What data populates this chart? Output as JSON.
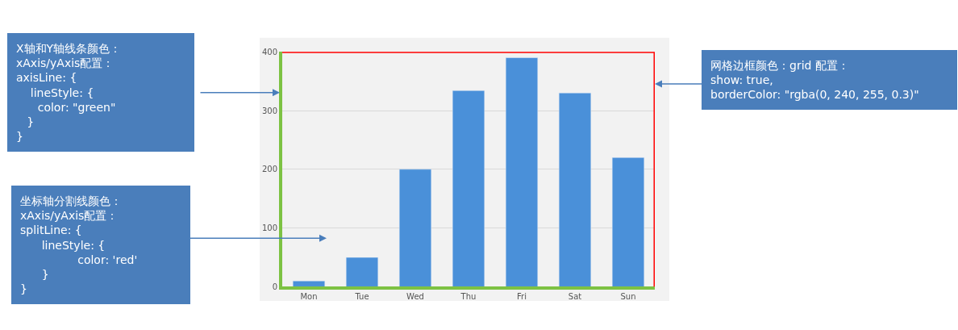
{
  "chart_data": {
    "type": "bar",
    "categories": [
      "Mon",
      "Tue",
      "Wed",
      "Thu",
      "Fri",
      "Sat",
      "Sun"
    ],
    "values": [
      10,
      50,
      200,
      334,
      390,
      330,
      220
    ],
    "color": "#4a90d9",
    "ylim": [
      0,
      400
    ],
    "yticks": [
      0,
      100,
      200,
      300,
      400
    ],
    "grid": "y",
    "annotations": [
      "X轴和Y轴线条颜色：\nxAxis/yAxis配置：\naxisLine: {\n    lineStyle: {\n      color: \"green\"\n   }\n}",
      "坐标轴分割线颜色：\nxAxis/yAxis配置：\nsplitLine: {\n      lineStyle: {\n                color: 'red'\n      }\n}",
      "网格边框颜色：grid 配置：\nshow: true,\nborderColor: \"rgba(0, 240, 255, 0.3)\""
    ]
  }
}
